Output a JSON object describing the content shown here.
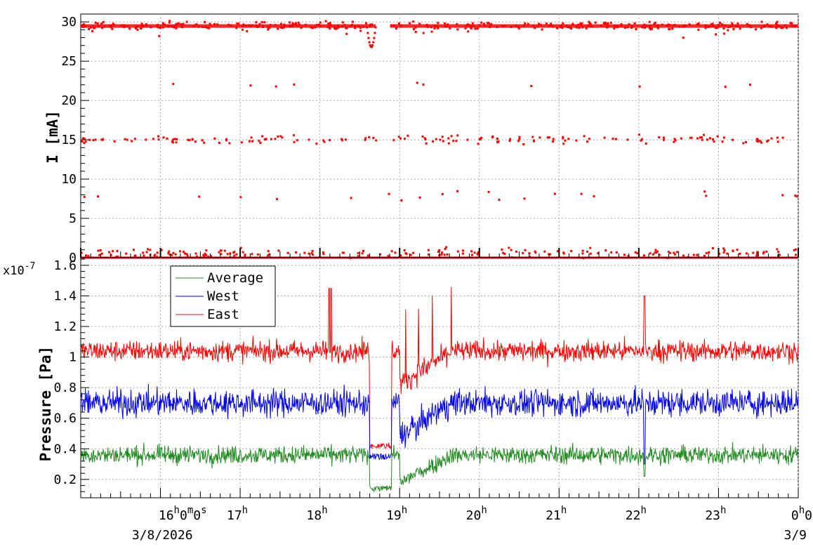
{
  "chart_data": [
    {
      "type": "scatter",
      "ylabel": "I [mA]",
      "ylim": [
        0,
        31
      ],
      "y_ticks": [
        "0",
        "5",
        "10",
        "15",
        "20",
        "25",
        "30"
      ],
      "grid": true,
      "series": [
        {
          "color": "#ff0000",
          "bands": [
            {
              "level": 29.5,
              "from_h": 15.0,
              "to_h": 24.0,
              "spread": 0.5,
              "gaps": [
                [
                  18.7,
                  18.88
                ]
              ],
              "count": 420
            },
            {
              "level": 15.0,
              "from_h": 15.0,
              "to_h": 24.0,
              "spread": 0.6,
              "count": 170
            },
            {
              "level": 22.0,
              "from_h": 15.0,
              "to_h": 24.0,
              "spread": 0.3,
              "count": 10
            },
            {
              "level": 7.8,
              "from_h": 15.0,
              "to_h": 24.0,
              "spread": 0.6,
              "count": 22
            },
            {
              "level": 0.6,
              "from_h": 15.0,
              "to_h": 24.0,
              "spread": 0.6,
              "count": 200
            },
            {
              "level": 0.0,
              "from_h": 15.0,
              "to_h": 24.0,
              "spread": 0.0,
              "count": 1,
              "solid": true
            }
          ],
          "dip": {
            "at_h": 18.65,
            "min": 26.8
          }
        }
      ]
    },
    {
      "type": "line",
      "ylabel": "Pressure [Pa]",
      "y_multiplier": "x10",
      "y_multiplier_exp": "-7",
      "ylim": [
        0.08,
        1.65
      ],
      "y_ticks": [
        "0.2",
        "0.4",
        "0.6",
        "0.8",
        "1",
        "1.2",
        "1.4",
        "1.6"
      ],
      "grid": true,
      "legend_position": "top-left",
      "series": [
        {
          "name": "Average",
          "color": "#228b22",
          "baseline": 0.36,
          "noise": 0.06
        },
        {
          "name": "West",
          "color": "#0000ff",
          "baseline": 0.7,
          "noise": 0.09
        },
        {
          "name": "East",
          "color": "#ff0000",
          "baseline": 1.04,
          "noise": 0.07
        }
      ],
      "disturbance_window_h": [
        18.1,
        19.7
      ]
    }
  ],
  "x_axis": {
    "range_h": [
      15.0,
      24.0
    ],
    "tick_labels": [
      {
        "hour": 16,
        "main": "16",
        "sup1": "h",
        "mid1": "0",
        "sup2": "m",
        "mid2": "0",
        "sup3": "s",
        "date": "3/8/2026"
      },
      {
        "hour": 17,
        "main": "17",
        "sup1": "h"
      },
      {
        "hour": 18,
        "main": "18",
        "sup1": "h"
      },
      {
        "hour": 19,
        "main": "19",
        "sup1": "h"
      },
      {
        "hour": 20,
        "main": "20",
        "sup1": "h"
      },
      {
        "hour": 21,
        "main": "21",
        "sup1": "h"
      },
      {
        "hour": 22,
        "main": "22",
        "sup1": "h"
      },
      {
        "hour": 23,
        "main": "23",
        "sup1": "h"
      },
      {
        "hour": 24,
        "main": "0",
        "sup1": "h",
        "mid1": "0",
        "date": "3/9"
      }
    ]
  }
}
